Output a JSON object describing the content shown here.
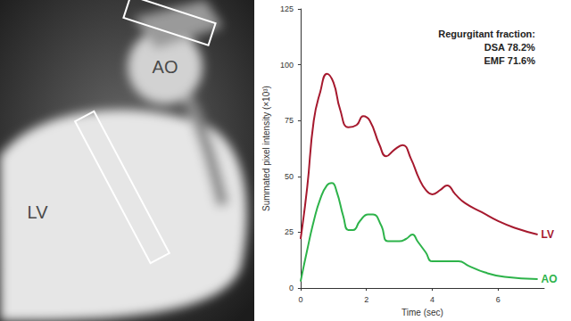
{
  "image_panel": {
    "labels": [
      "AO",
      "LV"
    ]
  },
  "chart_data": {
    "type": "line",
    "xlabel": "Time (sec)",
    "ylabel": "Summated pixel intensity (×10³)",
    "annotations": [
      "Regurgitant fraction:",
      "DSA 78.2%",
      "EMF 71.6%"
    ],
    "xlim": [
      0,
      7.4
    ],
    "xticks": [
      0,
      2,
      4,
      6
    ],
    "ylim": [
      0,
      125
    ],
    "yticks": [
      0,
      25,
      50,
      75,
      100,
      125
    ],
    "grid": false,
    "series": [
      {
        "name": "LV",
        "color": "#a6192e",
        "x": [
          0,
          0.2,
          0.4,
          0.6,
          0.8,
          1.0,
          1.2,
          1.45,
          1.7,
          1.9,
          2.1,
          2.4,
          2.6,
          2.85,
          3.1,
          3.35,
          3.6,
          3.8,
          4.0,
          4.25,
          4.45,
          4.7,
          5.0,
          5.5,
          6.0,
          6.5,
          7.2
        ],
        "values": [
          22,
          45,
          75,
          88,
          96,
          92,
          80,
          72,
          73,
          77,
          75,
          64,
          59,
          62,
          64,
          58,
          49,
          44,
          42,
          44,
          46,
          42,
          38,
          34,
          30,
          27,
          24
        ]
      },
      {
        "name": "AO",
        "color": "#2db34a",
        "x": [
          0,
          0.2,
          0.4,
          0.6,
          0.8,
          0.95,
          1.1,
          1.3,
          1.45,
          1.6,
          1.8,
          2.05,
          2.2,
          2.45,
          2.65,
          3.0,
          3.2,
          3.4,
          3.55,
          3.8,
          4.0,
          4.5,
          4.8,
          5.1,
          5.6,
          6.2,
          7.2
        ],
        "values": [
          3,
          17,
          30,
          40,
          46,
          47,
          43,
          32,
          26,
          26,
          30,
          33,
          33,
          28,
          21,
          21,
          22,
          24,
          21,
          16,
          12,
          12,
          12,
          10,
          7,
          5,
          4
        ]
      }
    ]
  }
}
